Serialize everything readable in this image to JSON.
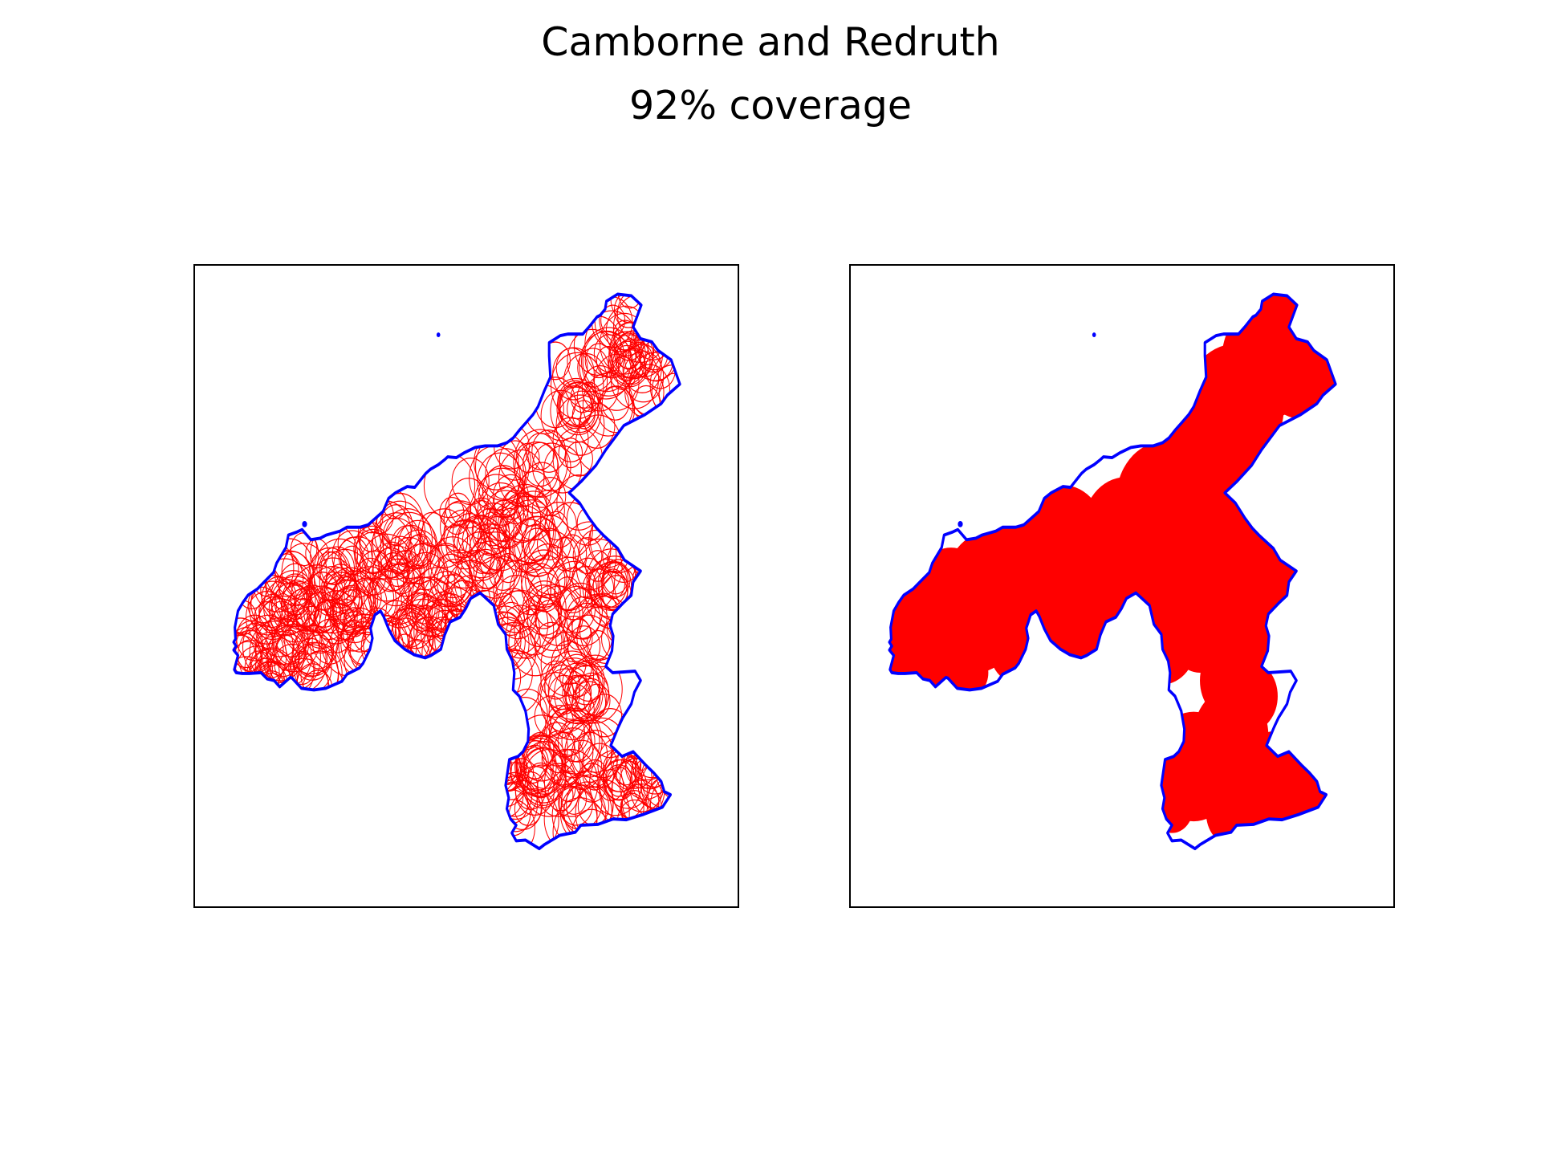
{
  "figure": {
    "title": "Camborne and Redruth",
    "subtitle": "92% coverage"
  },
  "panels": [
    {
      "id": "circles",
      "view": "individual-circles"
    },
    {
      "id": "union",
      "view": "filled-union"
    }
  ],
  "colors": {
    "boundary": "#0000ff",
    "coverage": "#ff0000",
    "frame": "#000000",
    "background": "#ffffff"
  }
}
